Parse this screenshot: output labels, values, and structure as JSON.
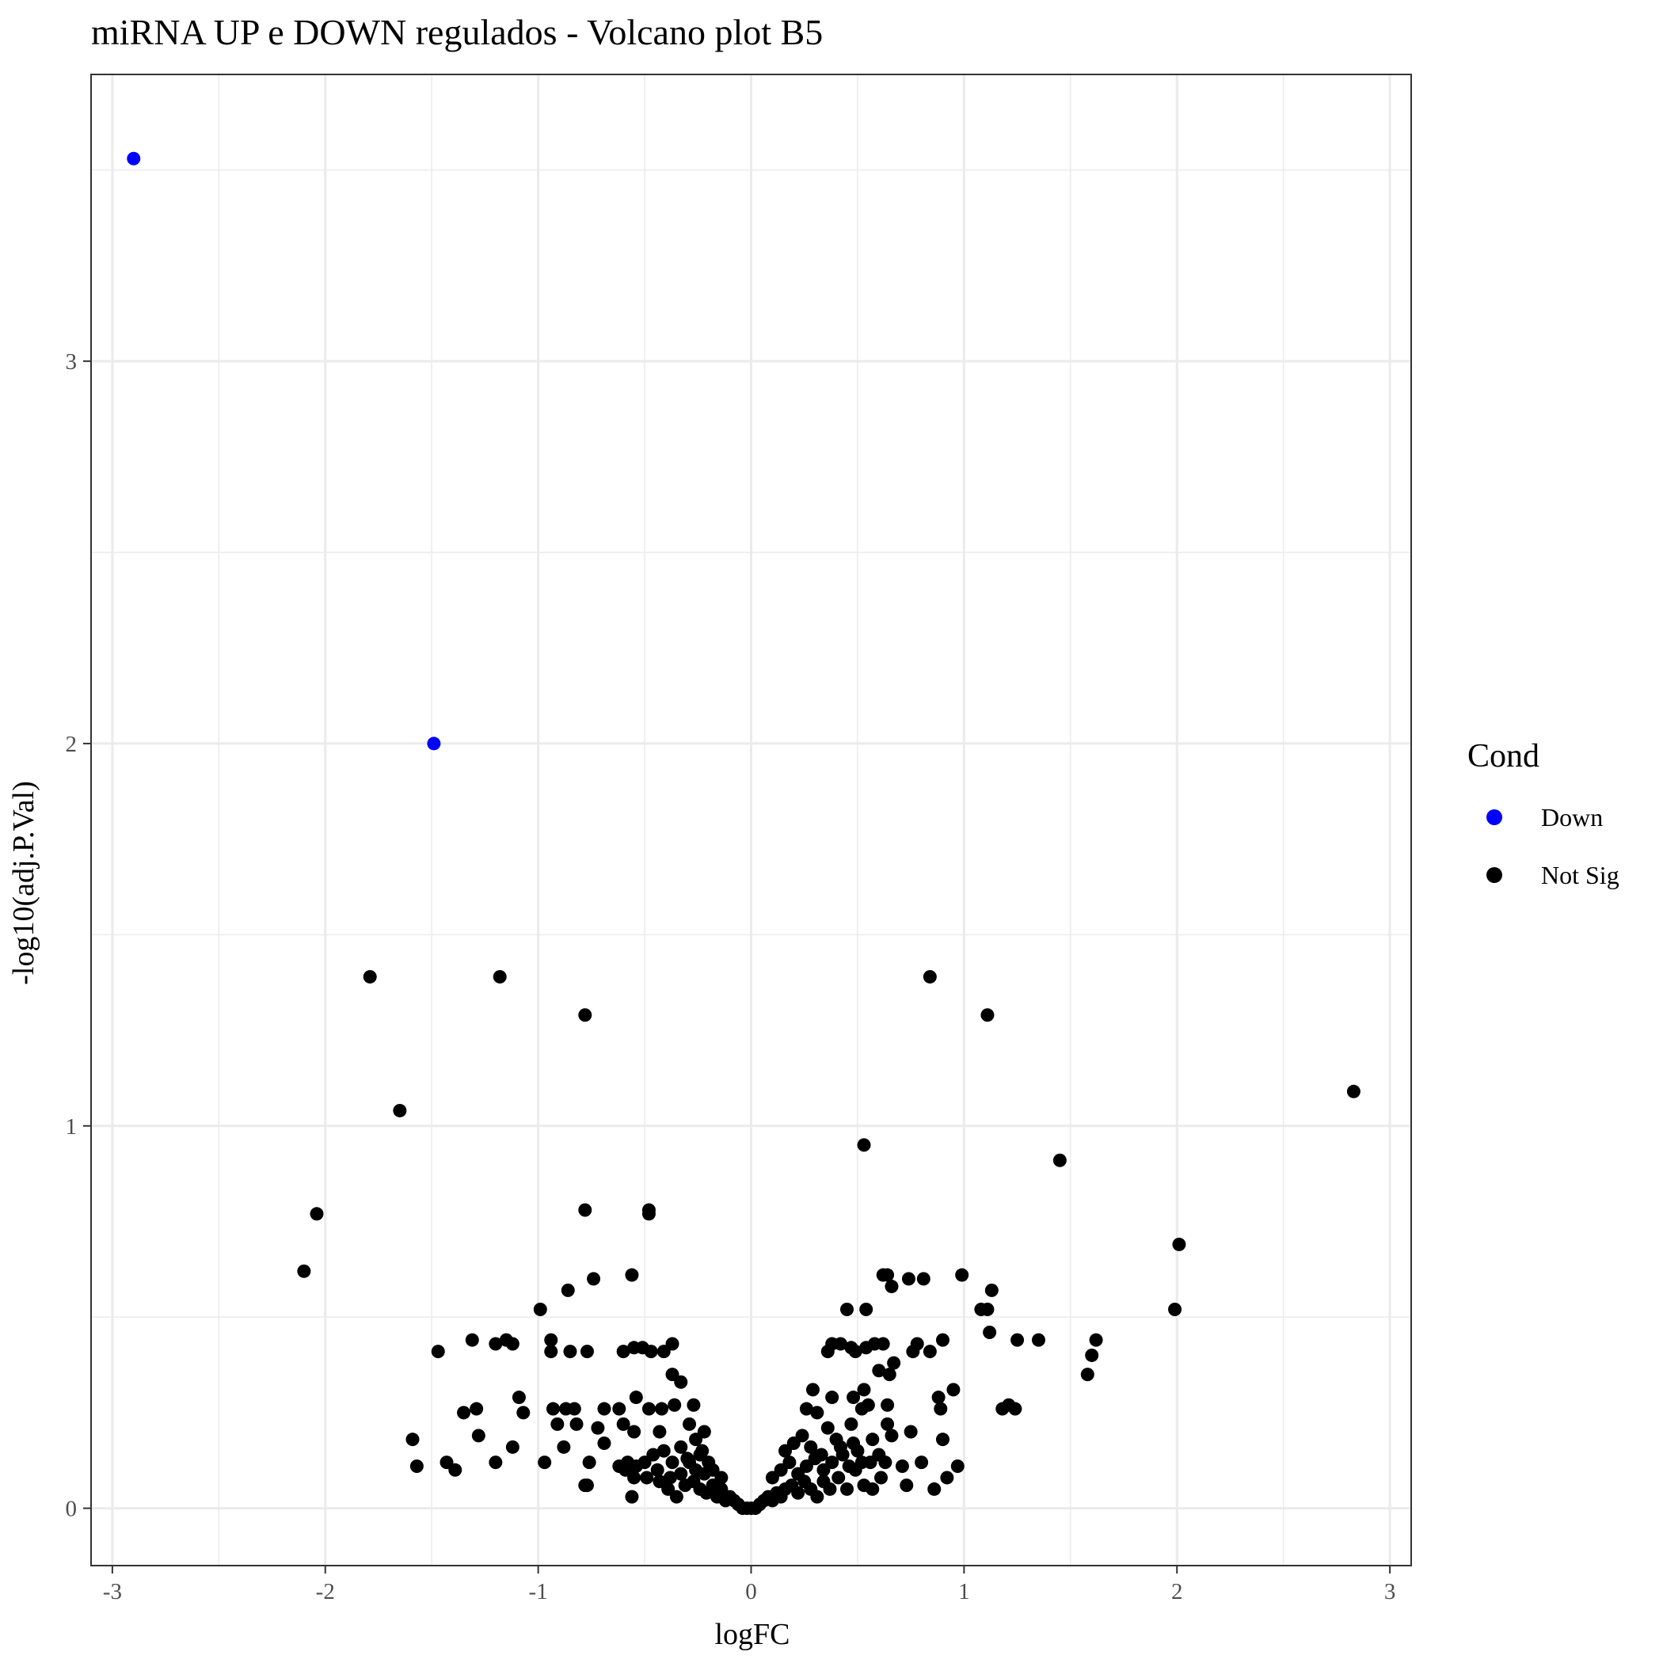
{
  "chart_data": {
    "type": "scatter",
    "title": "miRNA UP e DOWN regulados - Volcano plot B5",
    "xlabel": "logFC",
    "ylabel": "-log10(adj.P.Val)",
    "xlim": [
      -3.1,
      3.1
    ],
    "ylim": [
      -0.15,
      3.75
    ],
    "xticks": [
      -3,
      -2,
      -1,
      0,
      1,
      2,
      3
    ],
    "yticks": [
      0,
      1,
      2,
      3
    ],
    "grid": true,
    "legend": {
      "title": "Cond",
      "placement": "right",
      "entries": [
        {
          "label": "Down",
          "color": "#0000ff"
        },
        {
          "label": "Not Sig",
          "color": "#000000"
        }
      ]
    },
    "series": [
      {
        "name": "Down",
        "color": "#0000ff",
        "points": [
          [
            -2.9,
            3.53
          ],
          [
            -1.49,
            2.0
          ]
        ]
      },
      {
        "name": "Not Sig",
        "color": "#000000",
        "points": [
          [
            -1.79,
            1.39
          ],
          [
            -1.18,
            1.39
          ],
          [
            -0.78,
            1.29
          ],
          [
            0.84,
            1.39
          ],
          [
            1.11,
            1.29
          ],
          [
            -1.65,
            1.04
          ],
          [
            2.83,
            1.09
          ],
          [
            0.53,
            0.95
          ],
          [
            1.45,
            0.91
          ],
          [
            -2.04,
            0.77
          ],
          [
            -0.78,
            0.78
          ],
          [
            -0.48,
            0.78
          ],
          [
            -0.48,
            0.77
          ],
          [
            2.01,
            0.69
          ],
          [
            -2.1,
            0.62
          ],
          [
            -0.56,
            0.61
          ],
          [
            -0.74,
            0.6
          ],
          [
            -0.86,
            0.57
          ],
          [
            -0.99,
            0.52
          ],
          [
            0.62,
            0.61
          ],
          [
            0.64,
            0.61
          ],
          [
            0.74,
            0.6
          ],
          [
            0.81,
            0.6
          ],
          [
            0.99,
            0.61
          ],
          [
            0.66,
            0.58
          ],
          [
            1.13,
            0.57
          ],
          [
            1.99,
            0.52
          ],
          [
            0.45,
            0.52
          ],
          [
            0.54,
            0.52
          ],
          [
            1.08,
            0.52
          ],
          [
            1.11,
            0.52
          ],
          [
            1.12,
            0.46
          ],
          [
            -1.31,
            0.44
          ],
          [
            -1.2,
            0.43
          ],
          [
            -1.15,
            0.44
          ],
          [
            -1.12,
            0.43
          ],
          [
            -0.94,
            0.44
          ],
          [
            -0.94,
            0.41
          ],
          [
            -0.85,
            0.41
          ],
          [
            -0.77,
            0.41
          ],
          [
            -0.6,
            0.41
          ],
          [
            -0.55,
            0.42
          ],
          [
            -0.51,
            0.42
          ],
          [
            -0.47,
            0.41
          ],
          [
            -0.41,
            0.41
          ],
          [
            -0.37,
            0.43
          ],
          [
            -1.47,
            0.41
          ],
          [
            1.25,
            0.44
          ],
          [
            1.35,
            0.44
          ],
          [
            1.62,
            0.44
          ],
          [
            1.6,
            0.4
          ],
          [
            1.58,
            0.35
          ],
          [
            0.9,
            0.44
          ],
          [
            0.84,
            0.41
          ],
          [
            0.78,
            0.43
          ],
          [
            0.76,
            0.41
          ],
          [
            0.62,
            0.43
          ],
          [
            0.58,
            0.43
          ],
          [
            0.54,
            0.42
          ],
          [
            0.47,
            0.42
          ],
          [
            0.42,
            0.43
          ],
          [
            0.38,
            0.43
          ],
          [
            0.36,
            0.41
          ],
          [
            0.49,
            0.41
          ],
          [
            0.67,
            0.38
          ],
          [
            0.65,
            0.35
          ],
          [
            0.6,
            0.36
          ],
          [
            -0.37,
            0.35
          ],
          [
            -0.33,
            0.33
          ],
          [
            -0.54,
            0.29
          ],
          [
            -1.09,
            0.29
          ],
          [
            -1.29,
            0.26
          ],
          [
            -1.35,
            0.25
          ],
          [
            -1.07,
            0.25
          ],
          [
            -0.93,
            0.26
          ],
          [
            -0.87,
            0.26
          ],
          [
            -0.83,
            0.26
          ],
          [
            -0.69,
            0.26
          ],
          [
            -0.62,
            0.26
          ],
          [
            -0.48,
            0.26
          ],
          [
            -0.42,
            0.26
          ],
          [
            -0.36,
            0.27
          ],
          [
            -0.27,
            0.27
          ],
          [
            -0.91,
            0.22
          ],
          [
            -0.82,
            0.22
          ],
          [
            -0.72,
            0.21
          ],
          [
            -0.6,
            0.22
          ],
          [
            -0.55,
            0.2
          ],
          [
            -0.43,
            0.2
          ],
          [
            -0.29,
            0.22
          ],
          [
            -0.22,
            0.2
          ],
          [
            -1.28,
            0.19
          ],
          [
            0.95,
            0.31
          ],
          [
            0.88,
            0.29
          ],
          [
            0.89,
            0.26
          ],
          [
            1.18,
            0.26
          ],
          [
            1.21,
            0.27
          ],
          [
            1.24,
            0.26
          ],
          [
            0.29,
            0.31
          ],
          [
            0.38,
            0.29
          ],
          [
            0.48,
            0.29
          ],
          [
            0.53,
            0.31
          ],
          [
            0.55,
            0.27
          ],
          [
            0.64,
            0.27
          ],
          [
            0.26,
            0.26
          ],
          [
            0.31,
            0.25
          ],
          [
            0.52,
            0.26
          ],
          [
            0.36,
            0.21
          ],
          [
            0.47,
            0.22
          ],
          [
            0.64,
            0.22
          ],
          [
            0.75,
            0.2
          ],
          [
            0.9,
            0.18
          ],
          [
            0.24,
            0.19
          ],
          [
            0.4,
            0.18
          ],
          [
            0.48,
            0.17
          ],
          [
            0.57,
            0.18
          ],
          [
            0.66,
            0.19
          ],
          [
            -1.59,
            0.18
          ],
          [
            -1.57,
            0.11
          ],
          [
            -1.43,
            0.12
          ],
          [
            -1.39,
            0.1
          ],
          [
            -1.2,
            0.12
          ],
          [
            -1.12,
            0.16
          ],
          [
            -0.97,
            0.12
          ],
          [
            -0.88,
            0.16
          ],
          [
            -0.76,
            0.12
          ],
          [
            -0.69,
            0.17
          ],
          [
            -0.62,
            0.11
          ],
          [
            -0.58,
            0.12
          ],
          [
            -0.54,
            0.11
          ],
          [
            -0.5,
            0.12
          ],
          [
            -0.46,
            0.14
          ],
          [
            -0.41,
            0.15
          ],
          [
            -0.37,
            0.12
          ],
          [
            -0.33,
            0.16
          ],
          [
            -0.3,
            0.13
          ],
          [
            -0.26,
            0.18
          ],
          [
            -0.23,
            0.15
          ],
          [
            -0.2,
            0.12
          ],
          [
            -0.78,
            0.06
          ],
          [
            -0.77,
            0.06
          ],
          [
            -0.59,
            0.1
          ],
          [
            -0.55,
            0.08
          ],
          [
            -0.49,
            0.08
          ],
          [
            -0.43,
            0.07
          ],
          [
            -0.39,
            0.05
          ],
          [
            -0.35,
            0.03
          ],
          [
            -0.56,
            0.03
          ],
          [
            -0.31,
            0.06
          ],
          [
            -0.27,
            0.07
          ],
          [
            -0.24,
            0.05
          ],
          [
            -0.21,
            0.04
          ],
          [
            -0.18,
            0.06
          ],
          [
            -0.16,
            0.03
          ],
          [
            -0.14,
            0.05
          ],
          [
            -0.12,
            0.02
          ],
          [
            -0.1,
            0.03
          ],
          [
            -0.08,
            0.02
          ],
          [
            -0.06,
            0.01
          ],
          [
            -0.04,
            0.0
          ],
          [
            -0.02,
            0.0
          ],
          [
            0.0,
            0.0
          ],
          [
            0.02,
            0.0
          ],
          [
            0.04,
            0.01
          ],
          [
            0.06,
            0.02
          ],
          [
            0.08,
            0.03
          ],
          [
            0.1,
            0.02
          ],
          [
            0.12,
            0.04
          ],
          [
            0.14,
            0.03
          ],
          [
            0.16,
            0.05
          ],
          [
            0.19,
            0.06
          ],
          [
            0.22,
            0.04
          ],
          [
            0.25,
            0.07
          ],
          [
            0.28,
            0.05
          ],
          [
            0.31,
            0.03
          ],
          [
            0.34,
            0.07
          ],
          [
            0.37,
            0.05
          ],
          [
            0.41,
            0.08
          ],
          [
            0.45,
            0.05
          ],
          [
            0.49,
            0.1
          ],
          [
            0.53,
            0.06
          ],
          [
            0.57,
            0.05
          ],
          [
            0.61,
            0.08
          ],
          [
            0.73,
            0.06
          ],
          [
            0.86,
            0.05
          ],
          [
            0.92,
            0.08
          ],
          [
            0.1,
            0.08
          ],
          [
            0.14,
            0.1
          ],
          [
            0.18,
            0.12
          ],
          [
            0.22,
            0.09
          ],
          [
            0.26,
            0.11
          ],
          [
            0.3,
            0.13
          ],
          [
            0.34,
            0.1
          ],
          [
            0.38,
            0.12
          ],
          [
            0.43,
            0.14
          ],
          [
            0.46,
            0.11
          ],
          [
            0.52,
            0.12
          ],
          [
            0.56,
            0.12
          ],
          [
            0.63,
            0.12
          ],
          [
            0.71,
            0.11
          ],
          [
            0.8,
            0.12
          ],
          [
            0.97,
            0.11
          ],
          [
            0.16,
            0.15
          ],
          [
            0.2,
            0.17
          ],
          [
            0.28,
            0.16
          ],
          [
            0.33,
            0.14
          ],
          [
            0.42,
            0.16
          ],
          [
            0.5,
            0.15
          ],
          [
            0.6,
            0.14
          ],
          [
            -0.22,
            0.09
          ],
          [
            -0.18,
            0.1
          ],
          [
            -0.14,
            0.08
          ],
          [
            -0.26,
            0.1
          ],
          [
            -0.33,
            0.09
          ],
          [
            -0.38,
            0.08
          ],
          [
            -0.44,
            0.1
          ],
          [
            -0.29,
            0.12
          ],
          [
            -0.24,
            0.14
          ]
        ]
      }
    ]
  }
}
